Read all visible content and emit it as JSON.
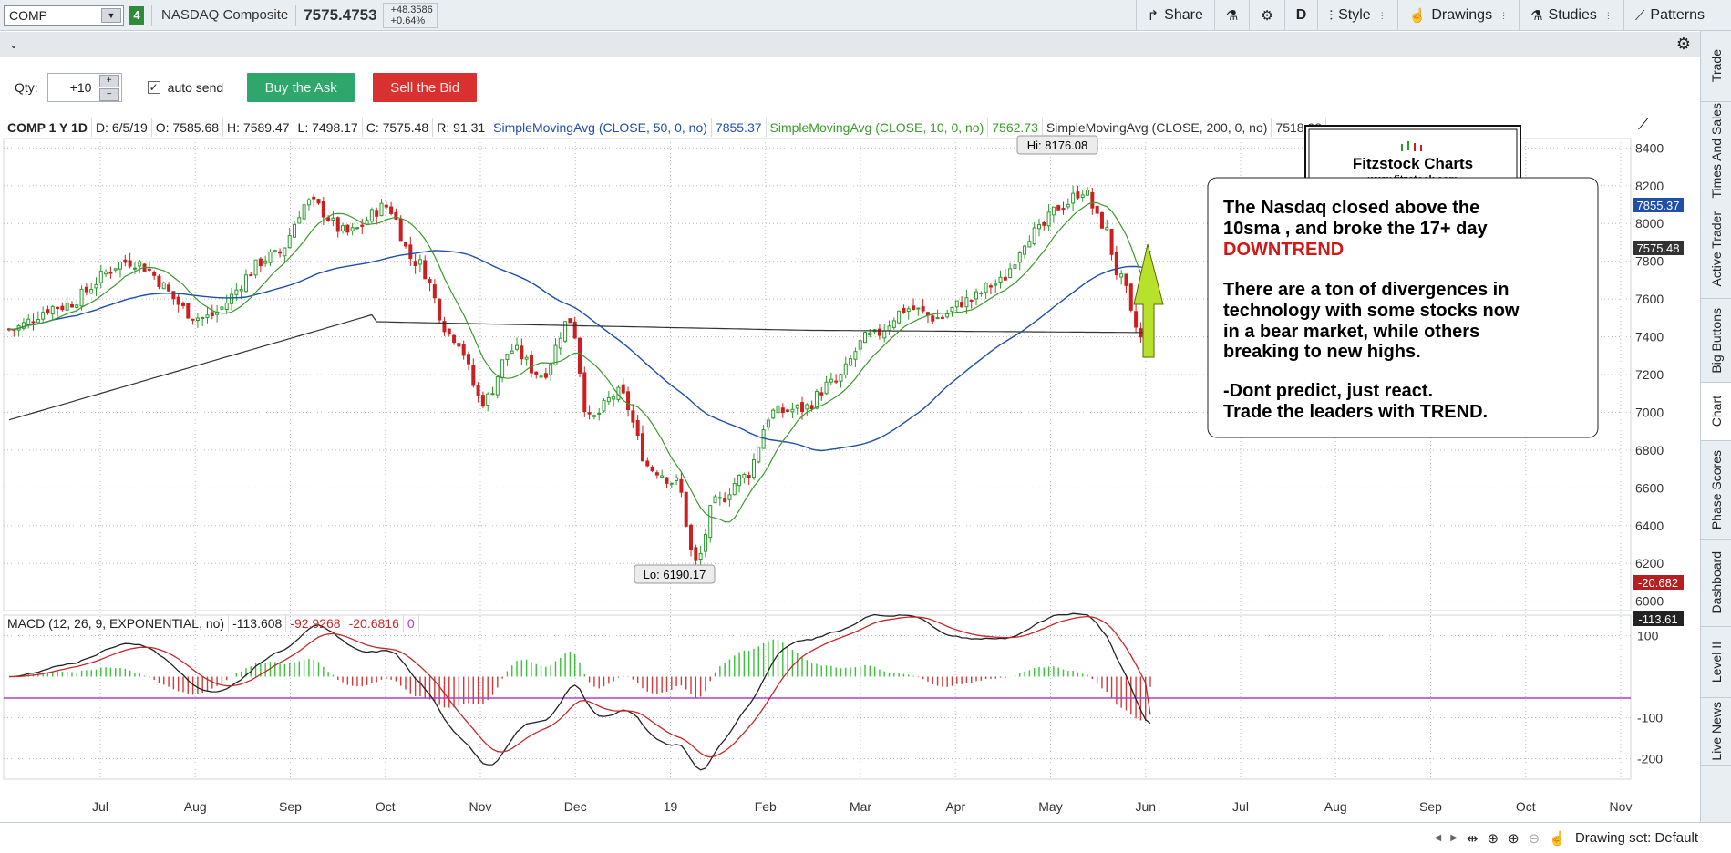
{
  "toolbar": {
    "symbol": "COMP",
    "link_group": "4",
    "symbol_name": "NASDAQ Composite",
    "last_price": "7575.4753",
    "net_change": "+48.3586",
    "pct_change": "+0.64%",
    "share_label": "Share",
    "period_label": "D",
    "style_label": "Style",
    "drawings_label": "Drawings",
    "studies_label": "Studies",
    "patterns_label": "Patterns"
  },
  "trade": {
    "qty_label": "Qty:",
    "qty_value": "+10",
    "auto_send_label": "auto send",
    "buy_label": "Buy the Ask",
    "sell_label": "Sell the Bid"
  },
  "right_tabs": [
    "Trade",
    "Times And Sales",
    "Active Trader",
    "Big Buttons",
    "Chart",
    "Phase Scores",
    "Dashboard",
    "Level II",
    "Live News"
  ],
  "active_tab": "Chart",
  "price_header": {
    "symbol": "COMP 1 Y 1D",
    "date": "D: 6/5/19",
    "open": "O: 7585.68",
    "high": "H: 7589.47",
    "low": "L: 7498.17",
    "close": "C: 7575.48",
    "range": "R: 91.31",
    "sma50_label": "SimpleMovingAvg (CLOSE, 50, 0, no)",
    "sma50_value": "7855.37",
    "sma10_label": "SimpleMovingAvg (CLOSE, 10, 0, no)",
    "sma10_value": "7562.73",
    "sma200_label": "SimpleMovingAvg (CLOSE, 200, 0, no)",
    "sma200_value": "7518.98"
  },
  "macd_header": {
    "label": "MACD (12, 26, 9, EXPONENTIAL, no)",
    "value": "-113.608",
    "avg": "-92.9268",
    "diff": "-20.6816",
    "zero": "0"
  },
  "bottom": {
    "drawing_set": "Drawing set: Default"
  },
  "logo": {
    "title": "Fitzstock Charts",
    "url": "www.fitzstock.com"
  },
  "annotation": {
    "line1": "The Nasdaq closed above the",
    "line2": "10sma , and broke the 17+ day",
    "line3": "DOWNTREND",
    "line4": "There are a ton of divergences in",
    "line5": "technology with some stocks now",
    "line6": "in a bear market, while others",
    "line7": "breaking to new highs.",
    "line8": "-Dont predict, just react.",
    "line9": "Trade the leaders with TREND."
  },
  "colors": {
    "sma50": "#1f4fa8",
    "sma10": "#3a9a2a",
    "sma200": "#333333",
    "up": "#2a9a2a",
    "down": "#cc1f1f",
    "macd_avg": "#c62828",
    "zero_line": "#b03ec8",
    "arrow": "#b7e12b",
    "downtrend_text": "#d01818"
  },
  "chart_data": [
    {
      "type": "candlestick",
      "title": "COMP 1 Y 1D",
      "x_tick_labels": [
        "Jul",
        "Aug",
        "Sep",
        "Oct",
        "Nov",
        "Dec",
        "19",
        "Feb",
        "Mar",
        "Apr",
        "May",
        "Jun",
        "Jul",
        "Aug",
        "Sep",
        "Oct",
        "Nov"
      ],
      "y_tick_labels": [
        "6000",
        "6200",
        "6400",
        "6600",
        "6800",
        "7000",
        "7200",
        "7400",
        "7600",
        "7800",
        "8000",
        "8200",
        "8400"
      ],
      "ylim": [
        5950,
        8450
      ],
      "callouts": {
        "high": "Hi: 8176.08",
        "low": "Lo: 6190.17"
      },
      "price_badges": {
        "sma50": "7855.37",
        "last": "7575.48"
      },
      "monthly_close": [
        {
          "month": "Jun 2018",
          "close": 7510
        },
        {
          "month": "Jul",
          "close": 7670
        },
        {
          "month": "Aug",
          "close": 8110
        },
        {
          "month": "Sep",
          "close": 8046
        },
        {
          "month": "Oct",
          "close": 7305
        },
        {
          "month": "Nov",
          "close": 7330
        },
        {
          "month": "Dec",
          "close": 6635
        },
        {
          "month": "Jan",
          "close": 7282
        },
        {
          "month": "Feb",
          "close": 7533
        },
        {
          "month": "Mar",
          "close": 7729
        },
        {
          "month": "Apr",
          "close": 8095
        },
        {
          "month": "May",
          "close": 7453
        },
        {
          "month": "Jun 5",
          "close": 7575
        }
      ],
      "series": [
        {
          "name": "SimpleMovingAvg (CLOSE, 10, 0, no)",
          "last": 7562.73
        },
        {
          "name": "SimpleMovingAvg (CLOSE, 50, 0, no)",
          "last": 7855.37
        },
        {
          "name": "SimpleMovingAvg (CLOSE, 200, 0, no)",
          "last": 7518.98
        }
      ]
    },
    {
      "type": "line",
      "title": "MACD (12, 26, 9, EXPONENTIAL, no)",
      "y_tick_labels": [
        "100",
        "0",
        "-100",
        "-200"
      ],
      "ylim": [
        -250,
        150
      ],
      "badges": {
        "diff": "-20.682",
        "value": "-113.61"
      },
      "series": [
        {
          "name": "MACD",
          "last": -113.608
        },
        {
          "name": "Avg",
          "last": -92.9268
        },
        {
          "name": "Diff",
          "last": -20.6816
        }
      ]
    }
  ]
}
